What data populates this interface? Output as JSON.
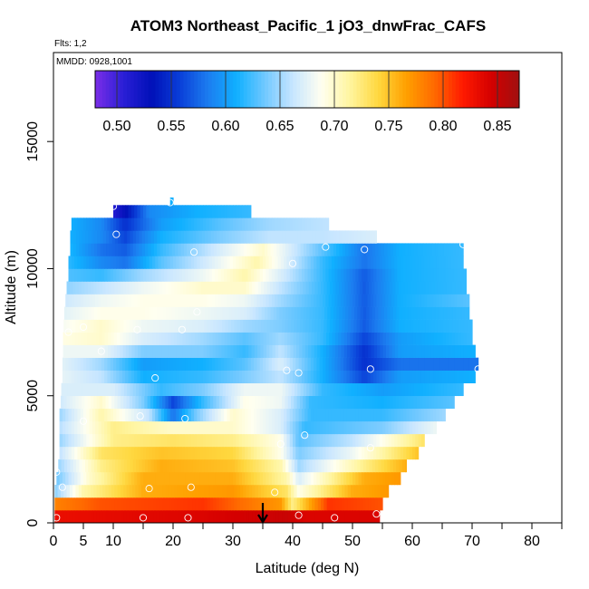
{
  "chart_data": {
    "type": "heatmap",
    "title": "ATOM3 Northeast_Pacific_1 jO3_dnwFrac_CAFS",
    "flights_label": "Flts: 1,2",
    "dates_label": "MMDD: 0928,1001",
    "xlabel": "Latitude (deg N)",
    "ylabel": "Altitude (m)",
    "xlim": [
      0,
      85
    ],
    "ylim": [
      0,
      18500
    ],
    "x_ticks": [
      0,
      5,
      10,
      20,
      30,
      40,
      50,
      60,
      70,
      80
    ],
    "x_tick_labels": [
      "0",
      "5",
      "10",
      "20",
      "30",
      "40",
      "50",
      "60",
      "70",
      "80"
    ],
    "y_ticks": [
      0,
      5000,
      10000,
      15000
    ],
    "y_tick_labels": [
      "0",
      "5000",
      "10000",
      "15000"
    ],
    "colorbar": {
      "range": [
        0.48,
        0.87
      ],
      "ticks": [
        0.5,
        0.55,
        0.6,
        0.65,
        0.7,
        0.75,
        0.8,
        0.85
      ],
      "tick_labels": [
        "0.50",
        "0.55",
        "0.60",
        "0.65",
        "0.70",
        "0.75",
        "0.80",
        "0.85"
      ],
      "colors": [
        "#7b2ee8",
        "#2a1fd6",
        "#0010b8",
        "#0a3fd8",
        "#1c7df0",
        "#10b0ff",
        "#70c8ff",
        "#c8e6ff",
        "#fffff0",
        "#fff5a0",
        "#ffd840",
        "#ffa000",
        "#ff6a00",
        "#ff1a00",
        "#d40000",
        "#a01010"
      ]
    },
    "marker": {
      "type": "arrow-down",
      "latitude": 35,
      "altitude": 0,
      "color": "#000000"
    },
    "layers": [
      {
        "z0": 0,
        "z1": 500,
        "x0": 0.2,
        "x1": 54.5,
        "stops": [
          [
            0,
            0.83
          ],
          [
            25,
            0.84
          ],
          [
            39,
            0.85
          ],
          [
            42,
            0.84
          ],
          [
            54.5,
            0.84
          ]
        ]
      },
      {
        "z0": 500,
        "z1": 1000,
        "x0": 0.2,
        "x1": 55,
        "stops": [
          [
            0,
            0.78
          ],
          [
            8,
            0.8
          ],
          [
            25,
            0.81
          ],
          [
            38,
            0.77
          ],
          [
            40,
            0.72
          ],
          [
            46,
            0.81
          ],
          [
            55,
            0.8
          ]
        ]
      },
      {
        "z0": 1000,
        "z1": 1500,
        "x0": 0.2,
        "x1": 56,
        "stops": [
          [
            0,
            0.64
          ],
          [
            5,
            0.71
          ],
          [
            15,
            0.76
          ],
          [
            30,
            0.77
          ],
          [
            39,
            0.73
          ],
          [
            41,
            0.69
          ],
          [
            50,
            0.76
          ],
          [
            56,
            0.77
          ]
        ]
      },
      {
        "z0": 1500,
        "z1": 2000,
        "x0": 0.5,
        "x1": 58,
        "stops": [
          [
            0,
            0.63
          ],
          [
            6,
            0.7
          ],
          [
            15,
            0.76
          ],
          [
            30,
            0.76
          ],
          [
            39,
            0.71
          ],
          [
            41,
            0.67
          ],
          [
            52,
            0.76
          ],
          [
            58,
            0.77
          ]
        ]
      },
      {
        "z0": 2000,
        "z1": 2500,
        "x0": 0.8,
        "x1": 59,
        "stops": [
          [
            0,
            0.64
          ],
          [
            8,
            0.72
          ],
          [
            18,
            0.76
          ],
          [
            30,
            0.75
          ],
          [
            38,
            0.71
          ],
          [
            41,
            0.65
          ],
          [
            52,
            0.72
          ],
          [
            59,
            0.76
          ]
        ]
      },
      {
        "z0": 2500,
        "z1": 3000,
        "x0": 1,
        "x1": 61,
        "stops": [
          [
            0,
            0.65
          ],
          [
            8,
            0.73
          ],
          [
            18,
            0.75
          ],
          [
            30,
            0.74
          ],
          [
            38,
            0.69
          ],
          [
            41,
            0.64
          ],
          [
            50,
            0.68
          ],
          [
            61,
            0.75
          ]
        ]
      },
      {
        "z0": 3000,
        "z1": 3500,
        "x0": 1,
        "x1": 62,
        "stops": [
          [
            0,
            0.64
          ],
          [
            10,
            0.72
          ],
          [
            20,
            0.73
          ],
          [
            30,
            0.72
          ],
          [
            38,
            0.69
          ],
          [
            41,
            0.63
          ],
          [
            50,
            0.66
          ],
          [
            62,
            0.73
          ]
        ]
      },
      {
        "z0": 3500,
        "z1": 4000,
        "x0": 1,
        "x1": 64,
        "stops": [
          [
            0,
            0.65
          ],
          [
            10,
            0.72
          ],
          [
            20,
            0.7
          ],
          [
            30,
            0.7
          ],
          [
            38,
            0.67
          ],
          [
            42,
            0.62
          ],
          [
            55,
            0.64
          ],
          [
            64,
            0.68
          ]
        ]
      },
      {
        "z0": 4000,
        "z1": 4500,
        "x0": 1,
        "x1": 65.5,
        "stops": [
          [
            0,
            0.64
          ],
          [
            8,
            0.71
          ],
          [
            16,
            0.66
          ],
          [
            20,
            0.58
          ],
          [
            24,
            0.64
          ],
          [
            30,
            0.7
          ],
          [
            38,
            0.67
          ],
          [
            43,
            0.62
          ],
          [
            55,
            0.62
          ],
          [
            65.5,
            0.65
          ]
        ]
      },
      {
        "z0": 4500,
        "z1": 5000,
        "x0": 1.2,
        "x1": 67,
        "stops": [
          [
            0,
            0.66
          ],
          [
            8,
            0.7
          ],
          [
            15,
            0.64
          ],
          [
            20,
            0.56
          ],
          [
            25,
            0.62
          ],
          [
            32,
            0.69
          ],
          [
            38,
            0.68
          ],
          [
            43,
            0.62
          ],
          [
            55,
            0.61
          ],
          [
            67,
            0.63
          ]
        ]
      },
      {
        "z0": 5000,
        "z1": 5500,
        "x0": 1.3,
        "x1": 68.5,
        "stops": [
          [
            0,
            0.67
          ],
          [
            10,
            0.67
          ],
          [
            18,
            0.62
          ],
          [
            25,
            0.64
          ],
          [
            32,
            0.68
          ],
          [
            38,
            0.68
          ],
          [
            45,
            0.62
          ],
          [
            55,
            0.6
          ],
          [
            68.5,
            0.62
          ]
        ]
      },
      {
        "z0": 5500,
        "z1": 6000,
        "x0": 1.5,
        "x1": 70.5,
        "stops": [
          [
            0,
            0.68
          ],
          [
            8,
            0.66
          ],
          [
            15,
            0.61
          ],
          [
            25,
            0.62
          ],
          [
            32,
            0.64
          ],
          [
            38,
            0.66
          ],
          [
            45,
            0.61
          ],
          [
            52,
            0.56
          ],
          [
            58,
            0.6
          ],
          [
            70.5,
            0.61
          ]
        ]
      },
      {
        "z0": 6000,
        "z1": 6500,
        "x0": 1.5,
        "x1": 71,
        "stops": [
          [
            0,
            0.68
          ],
          [
            8,
            0.65
          ],
          [
            15,
            0.6
          ],
          [
            25,
            0.61
          ],
          [
            32,
            0.63
          ],
          [
            38,
            0.67
          ],
          [
            45,
            0.61
          ],
          [
            52,
            0.55
          ],
          [
            58,
            0.58
          ],
          [
            71,
            0.58
          ]
        ]
      },
      {
        "z0": 6500,
        "z1": 7000,
        "x0": 1.6,
        "x1": 70.5,
        "stops": [
          [
            0,
            0.68
          ],
          [
            8,
            0.68
          ],
          [
            15,
            0.64
          ],
          [
            25,
            0.64
          ],
          [
            32,
            0.62
          ],
          [
            38,
            0.66
          ],
          [
            45,
            0.61
          ],
          [
            52,
            0.55
          ],
          [
            58,
            0.6
          ],
          [
            70.5,
            0.61
          ]
        ]
      },
      {
        "z0": 7000,
        "z1": 7500,
        "x0": 1.6,
        "x1": 70,
        "stops": [
          [
            0,
            0.69
          ],
          [
            8,
            0.7
          ],
          [
            15,
            0.67
          ],
          [
            25,
            0.65
          ],
          [
            32,
            0.63
          ],
          [
            38,
            0.65
          ],
          [
            45,
            0.62
          ],
          [
            52,
            0.56
          ],
          [
            58,
            0.6
          ],
          [
            70,
            0.62
          ]
        ]
      },
      {
        "z0": 7500,
        "z1": 8000,
        "x0": 1.7,
        "x1": 70,
        "stops": [
          [
            0,
            0.68
          ],
          [
            8,
            0.7
          ],
          [
            15,
            0.68
          ],
          [
            25,
            0.67
          ],
          [
            32,
            0.65
          ],
          [
            38,
            0.64
          ],
          [
            45,
            0.62
          ],
          [
            52,
            0.57
          ],
          [
            58,
            0.61
          ],
          [
            70,
            0.62
          ]
        ]
      },
      {
        "z0": 8000,
        "z1": 8500,
        "x0": 1.8,
        "x1": 69.5,
        "stops": [
          [
            0,
            0.67
          ],
          [
            8,
            0.69
          ],
          [
            15,
            0.69
          ],
          [
            25,
            0.68
          ],
          [
            32,
            0.67
          ],
          [
            38,
            0.64
          ],
          [
            45,
            0.62
          ],
          [
            52,
            0.57
          ],
          [
            58,
            0.61
          ],
          [
            69.5,
            0.62
          ]
        ]
      },
      {
        "z0": 8500,
        "z1": 9000,
        "x0": 2,
        "x1": 69.5,
        "stops": [
          [
            0,
            0.66
          ],
          [
            8,
            0.68
          ],
          [
            15,
            0.69
          ],
          [
            25,
            0.69
          ],
          [
            32,
            0.68
          ],
          [
            38,
            0.65
          ],
          [
            45,
            0.62
          ],
          [
            52,
            0.57
          ],
          [
            58,
            0.61
          ],
          [
            69.5,
            0.63
          ]
        ]
      },
      {
        "z0": 9000,
        "z1": 9500,
        "x0": 2.2,
        "x1": 69,
        "stops": [
          [
            0,
            0.64
          ],
          [
            8,
            0.66
          ],
          [
            15,
            0.68
          ],
          [
            25,
            0.7
          ],
          [
            32,
            0.7
          ],
          [
            38,
            0.66
          ],
          [
            45,
            0.62
          ],
          [
            52,
            0.57
          ],
          [
            58,
            0.61
          ],
          [
            69,
            0.62
          ]
        ]
      },
      {
        "z0": 9500,
        "z1": 10000,
        "x0": 2.5,
        "x1": 69,
        "stops": [
          [
            0,
            0.63
          ],
          [
            8,
            0.62
          ],
          [
            15,
            0.65
          ],
          [
            25,
            0.68
          ],
          [
            32,
            0.71
          ],
          [
            38,
            0.67
          ],
          [
            45,
            0.62
          ],
          [
            52,
            0.57
          ],
          [
            58,
            0.61
          ],
          [
            69,
            0.62
          ]
        ]
      },
      {
        "z0": 10000,
        "z1": 10500,
        "x0": 2.5,
        "x1": 68.5,
        "stops": [
          [
            0,
            0.63
          ],
          [
            8,
            0.59
          ],
          [
            12,
            0.58
          ],
          [
            18,
            0.63
          ],
          [
            28,
            0.68
          ],
          [
            34,
            0.71
          ],
          [
            38,
            0.68
          ],
          [
            45,
            0.62
          ],
          [
            52,
            0.58
          ],
          [
            58,
            0.61
          ],
          [
            68.5,
            0.62
          ]
        ]
      },
      {
        "z0": 10500,
        "z1": 11000,
        "x0": 2.8,
        "x1": 68.5,
        "stops": [
          [
            0,
            0.63
          ],
          [
            8,
            0.58
          ],
          [
            12,
            0.57
          ],
          [
            18,
            0.62
          ],
          [
            28,
            0.67
          ],
          [
            35,
            0.7
          ],
          [
            38,
            0.68
          ],
          [
            45,
            0.63
          ],
          [
            52,
            0.58
          ],
          [
            58,
            0.61
          ],
          [
            68.5,
            0.62
          ]
        ]
      },
      {
        "z0": 11000,
        "z1": 11500,
        "x0": 2.8,
        "x1": 54,
        "stops": [
          [
            0,
            0.62
          ],
          [
            8,
            0.59
          ],
          [
            12,
            0.56
          ],
          [
            18,
            0.61
          ],
          [
            28,
            0.64
          ],
          [
            36,
            0.66
          ],
          [
            45,
            0.66
          ],
          [
            54,
            0.67
          ]
        ]
      },
      {
        "z0": 11500,
        "z1": 12000,
        "x0": 3,
        "x1": 46,
        "stops": [
          [
            0,
            0.62
          ],
          [
            8,
            0.59
          ],
          [
            12,
            0.55
          ],
          [
            18,
            0.6
          ],
          [
            28,
            0.63
          ],
          [
            36,
            0.65
          ],
          [
            46,
            0.66
          ]
        ]
      },
      {
        "z0": 12000,
        "z1": 12500,
        "x0": 10,
        "x1": 33,
        "stops": [
          [
            10,
            0.51
          ],
          [
            12,
            0.53
          ],
          [
            16,
            0.59
          ],
          [
            24,
            0.61
          ],
          [
            33,
            0.62
          ]
        ]
      },
      {
        "z0": 12500,
        "z1": 12800,
        "x0": 19.5,
        "x1": 20,
        "stops": [
          [
            19.5,
            0.61
          ],
          [
            20,
            0.61
          ]
        ]
      }
    ],
    "points": [
      [
        0.5,
        200
      ],
      [
        15,
        200
      ],
      [
        22.5,
        200
      ],
      [
        47,
        200
      ],
      [
        54,
        350
      ],
      [
        41,
        300
      ],
      [
        1.5,
        1400
      ],
      [
        16,
        1350
      ],
      [
        23,
        1400
      ],
      [
        37,
        1200
      ],
      [
        0.5,
        2000
      ],
      [
        5,
        4000
      ],
      [
        38,
        3100
      ],
      [
        42,
        3450
      ],
      [
        53,
        2950
      ],
      [
        14.5,
        4200
      ],
      [
        22,
        4100
      ],
      [
        17,
        5700
      ],
      [
        39,
        6000
      ],
      [
        41,
        5900
      ],
      [
        53,
        6050
      ],
      [
        71,
        6050
      ],
      [
        0,
        5700
      ],
      [
        8,
        6750
      ],
      [
        2.5,
        7500
      ],
      [
        5,
        7700
      ],
      [
        14,
        7600
      ],
      [
        21.5,
        7600
      ],
      [
        24,
        8300
      ],
      [
        40,
        10200
      ],
      [
        45.5,
        10850
      ],
      [
        52,
        10750
      ],
      [
        68.5,
        10950
      ],
      [
        23.5,
        10650
      ],
      [
        10.5,
        11350
      ],
      [
        10,
        12450
      ],
      [
        1.8,
        11850
      ],
      [
        19.5,
        12600
      ]
    ]
  }
}
